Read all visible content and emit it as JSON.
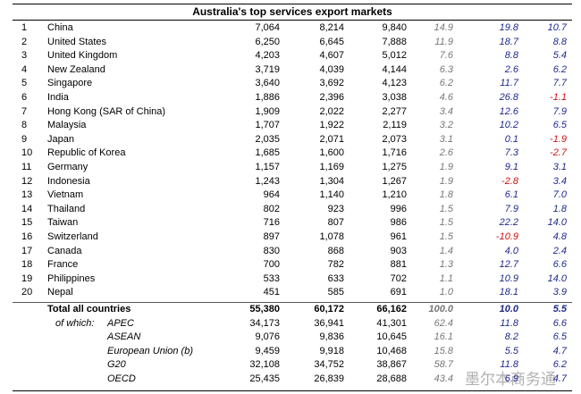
{
  "table": {
    "title": "Australia's top services export markets",
    "rows": [
      [
        "1",
        "China",
        "7,064",
        "8,214",
        "9,840",
        "14.9",
        "19.8",
        "10.7"
      ],
      [
        "2",
        "United States",
        "6,250",
        "6,645",
        "7,888",
        "11.9",
        "18.7",
        "8.8"
      ],
      [
        "3",
        "United Kingdom",
        "4,203",
        "4,607",
        "5,012",
        "7.6",
        "8.8",
        "5.4"
      ],
      [
        "4",
        "New Zealand",
        "3,719",
        "4,039",
        "4,144",
        "6.3",
        "2.6",
        "6.2"
      ],
      [
        "5",
        "Singapore",
        "3,640",
        "3,692",
        "4,123",
        "6.2",
        "11.7",
        "7.7"
      ],
      [
        "6",
        "India",
        "1,886",
        "2,396",
        "3,038",
        "4.6",
        "26.8",
        "-1.1"
      ],
      [
        "7",
        "Hong Kong (SAR of China)",
        "1,909",
        "2,022",
        "2,277",
        "3.4",
        "12.6",
        "7.9"
      ],
      [
        "8",
        "Malaysia",
        "1,707",
        "1,922",
        "2,119",
        "3.2",
        "10.2",
        "6.5"
      ],
      [
        "9",
        "Japan",
        "2,035",
        "2,071",
        "2,073",
        "3.1",
        "0.1",
        "-1.9"
      ],
      [
        "10",
        "Republic of Korea",
        "1,685",
        "1,600",
        "1,716",
        "2.6",
        "7.3",
        "-2.7"
      ],
      [
        "11",
        "Germany",
        "1,157",
        "1,169",
        "1,275",
        "1.9",
        "9.1",
        "3.1"
      ],
      [
        "12",
        "Indonesia",
        "1,243",
        "1,304",
        "1,267",
        "1.9",
        "-2.8",
        "3.4"
      ],
      [
        "13",
        "Vietnam",
        "964",
        "1,140",
        "1,210",
        "1.8",
        "6.1",
        "7.0"
      ],
      [
        "14",
        "Thailand",
        "802",
        "923",
        "996",
        "1.5",
        "7.9",
        "1.8"
      ],
      [
        "15",
        "Taiwan",
        "716",
        "807",
        "986",
        "1.5",
        "22.2",
        "14.0"
      ],
      [
        "16",
        "Switzerland",
        "897",
        "1,078",
        "961",
        "1.5",
        "-10.9",
        "4.8"
      ],
      [
        "17",
        "Canada",
        "830",
        "868",
        "903",
        "1.4",
        "4.0",
        "2.4"
      ],
      [
        "18",
        "France",
        "700",
        "782",
        "881",
        "1.3",
        "12.7",
        "6.6"
      ],
      [
        "19",
        "Philippines",
        "533",
        "633",
        "702",
        "1.1",
        "10.9",
        "14.0"
      ],
      [
        "20",
        "Nepal",
        "451",
        "585",
        "691",
        "1.0",
        "18.1",
        "3.9"
      ]
    ],
    "total": [
      "Total all countries",
      "55,380",
      "60,172",
      "66,162",
      "100.0",
      "10.0",
      "5.5"
    ],
    "subgroups_prefix": "of which:",
    "subgroups": [
      [
        "APEC",
        "34,173",
        "36,941",
        "41,301",
        "62.4",
        "11.8",
        "6.6"
      ],
      [
        "ASEAN",
        "9,076",
        "9,836",
        "10,645",
        "16.1",
        "8.2",
        "6.5"
      ],
      [
        "European Union (b)",
        "9,459",
        "9,918",
        "10,468",
        "15.8",
        "5.5",
        "4.7"
      ],
      [
        "G20",
        "32,108",
        "34,752",
        "38,867",
        "58.7",
        "11.8",
        "6.2"
      ],
      [
        "OECD",
        "25,435",
        "26,839",
        "28,688",
        "43.4",
        "6.9",
        "4.7"
      ]
    ]
  },
  "watermark": "墨尔本商务通"
}
